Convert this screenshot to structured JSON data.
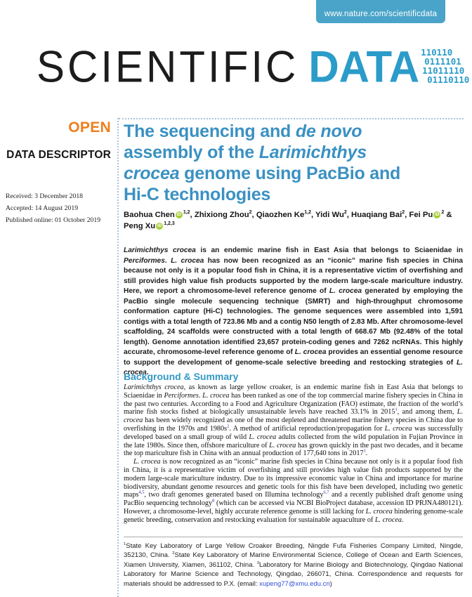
{
  "banner": {
    "url": "www.nature.com/scientificdata"
  },
  "logo": {
    "word1": "SCIENTIFIC",
    "word2": "DATA",
    "binary_lines": [
      "110110",
      "0111101",
      "11011110",
      "01110110"
    ]
  },
  "sidebar": {
    "open_label": "OPEN",
    "descriptor_label": "DATA DESCRIPTOR",
    "dates": [
      "Received: 3 December 2018",
      "Accepted: 14 August 2019",
      "Published online: 01 October 2019"
    ]
  },
  "colors": {
    "brand_blue": "#2b9cc9",
    "title_blue": "#3a91c2",
    "banner_blue": "#4aa4c9",
    "open_orange": "#ee7f1b",
    "orcid_green": "#a6ce39",
    "link_blue": "#2e4fd7"
  },
  "article": {
    "title_segments": [
      {
        "t": "The sequencing and "
      },
      {
        "t": "de novo",
        "i": true
      },
      {
        "br": true
      },
      {
        "t": "assembly of the "
      },
      {
        "t": "Larimichthys",
        "i": true
      },
      {
        "br": true
      },
      {
        "t": "crocea",
        "i": true
      },
      {
        "t": " genome using PacBio and"
      },
      {
        "br": true
      },
      {
        "t": "Hi-C technologies"
      }
    ],
    "authors_segments": [
      {
        "t": "Baohua Chen"
      },
      {
        "orcid": true
      },
      {
        "t": "1,2",
        "sup": true
      },
      {
        "t": ", Zhixiong Zhou"
      },
      {
        "t": "2",
        "sup": true
      },
      {
        "t": ", Qiaozhen Ke"
      },
      {
        "t": "1,2",
        "sup": true
      },
      {
        "t": ", Yidi Wu"
      },
      {
        "t": "2",
        "sup": true
      },
      {
        "t": ", Huaqiang Bai"
      },
      {
        "t": "2",
        "sup": true
      },
      {
        "t": ", Fei Pu"
      },
      {
        "orcid": true
      },
      {
        "t": "2",
        "sup": true
      },
      {
        "t": " &"
      },
      {
        "br": true
      },
      {
        "t": "Peng Xu"
      },
      {
        "orcid": true
      },
      {
        "t": "1,2,3",
        "sup": true
      }
    ],
    "abstract_segments": [
      {
        "t": "Larimichthys crocea",
        "i": true
      },
      {
        "t": " is an endemic marine fish in East Asia that belongs to Sciaenidae in "
      },
      {
        "t": "Perciformes",
        "i": true
      },
      {
        "t": ". "
      },
      {
        "t": "L. crocea",
        "i": true
      },
      {
        "t": " has now been recognized as an “iconic” marine fish species in China because not only is it a popular food fish in China, it is a representative victim of overfishing and still provides high value fish products supported by the modern large-scale mariculture industry. Here, we report a chromosome-level reference genome of "
      },
      {
        "t": "L. crocea",
        "i": true
      },
      {
        "t": " generated by employing the PacBio single molecule sequencing technique (SMRT) and high-throughput chromosome conformation capture (Hi-C) technologies. The genome sequences were assembled into 1,591 contigs with a total length of 723.86 Mb and a contig N50 length of 2.83 Mb. After chromosome-level scaffolding, 24 scaffolds were constructed with a total length of 668.67 Mb (92.48% of the total length). Genome annotation identified 23,657 protein-coding genes and 7262 ncRNAs. This highly accurate, chromosome-level reference genome of "
      },
      {
        "t": "L. crocea",
        "i": true
      },
      {
        "t": " provides an essential genome resource to support the development of genome-scale selective breeding and restocking strategies of "
      },
      {
        "t": "L. crocea",
        "i": true
      },
      {
        "t": "."
      }
    ],
    "section_heading": "Background & Summary",
    "paragraph1_segments": [
      {
        "t": "Larimichthys crocea",
        "i": true
      },
      {
        "t": ", as known as large yellow croaker, is an endemic marine fish in East Asia that belongs to Sciaenidae in "
      },
      {
        "t": "Perciformes",
        "i": true
      },
      {
        "t": ". "
      },
      {
        "t": "L. crocea",
        "i": true
      },
      {
        "t": " has been ranked as one of the top commercial marine fishery species in China in the past two centuries. According to a Food and Agriculture Organization (FAO) estimate, the fraction of the world’s marine fish stocks fished at biologically unsustainable levels have reached 33.1% in 2015"
      },
      {
        "t": "1",
        "sup": true
      },
      {
        "t": ", and among them, "
      },
      {
        "t": "L. crocea",
        "i": true
      },
      {
        "t": " has been widely recognized as one of the most depleted and threatened marine fishery species in China due to overfishing in the 1970s and 1980s"
      },
      {
        "t": "2",
        "sup": true
      },
      {
        "t": ". A method of artificial reproduction/propagation for "
      },
      {
        "t": "L. crocea",
        "i": true
      },
      {
        "t": " was successfully developed based on a small group of wild "
      },
      {
        "t": "L. crocea",
        "i": true
      },
      {
        "t": " adults collected from the wild population in Fujian Province in the late 1980s. Since then, offshore mariculture of "
      },
      {
        "t": "L. crocea",
        "i": true
      },
      {
        "t": " has grown quickly in the past two decades, and it became the top mariculture fish in China with an annual production of 177,640 tons in 2017"
      },
      {
        "t": "3",
        "sup": true
      },
      {
        "t": "."
      }
    ],
    "paragraph2_segments": [
      {
        "t": "L. crocea",
        "i": true
      },
      {
        "t": " is now recognized as an “iconic” marine fish species in China because not only is it a popular food fish in China, it is a representative victim of overfishing and still provides high value fish products supported by the modern large-scale mariculture industry. Due to its impressive economic value in China and importance for marine biodiversity, abundant genome resources and genetic tools for this fish have been developed, including two genetic maps"
      },
      {
        "t": "4,5",
        "sup": true
      },
      {
        "t": ", two draft genomes generated based on Illumina technology"
      },
      {
        "t": "6,7",
        "sup": true
      },
      {
        "t": " and a recently published draft genome using PacBio sequencing technology"
      },
      {
        "t": "8",
        "sup": true
      },
      {
        "t": " (which can be accessed via NCBI BioProject database, accession ID PRJNA480121). However, a chromosome-level, highly accurate reference genome is still lacking for "
      },
      {
        "t": "L. crocea",
        "i": true
      },
      {
        "t": " hindering genome-scale genetic breeding, conservation and restocking evaluation for sustainable aquaculture of "
      },
      {
        "t": "L. crocea",
        "i": true
      },
      {
        "t": "."
      }
    ],
    "footnote_segments": [
      {
        "t": "1",
        "sup": true
      },
      {
        "t": "State Key Laboratory of Large Yellow Croaker Breeding, Ningde Fufa Fisheries Company Limited, Ningde, 352130, China. "
      },
      {
        "t": "2",
        "sup": true
      },
      {
        "t": "State Key Laboratory of Marine Environmental Science, College of Ocean and Earth Sciences, Xiamen University, Xiamen, 361102, China. "
      },
      {
        "t": "3",
        "sup": true
      },
      {
        "t": "Laboratory for Marine Biology and Biotechnology, Qingdao National Laboratory for Marine Science and Technology, Qingdao, 266071, China. Correspondence and requests for materials should be addressed to P.X. (email: "
      },
      {
        "t": "xupeng77@xmu.edu.cn",
        "link": true
      },
      {
        "t": ")"
      }
    ]
  }
}
